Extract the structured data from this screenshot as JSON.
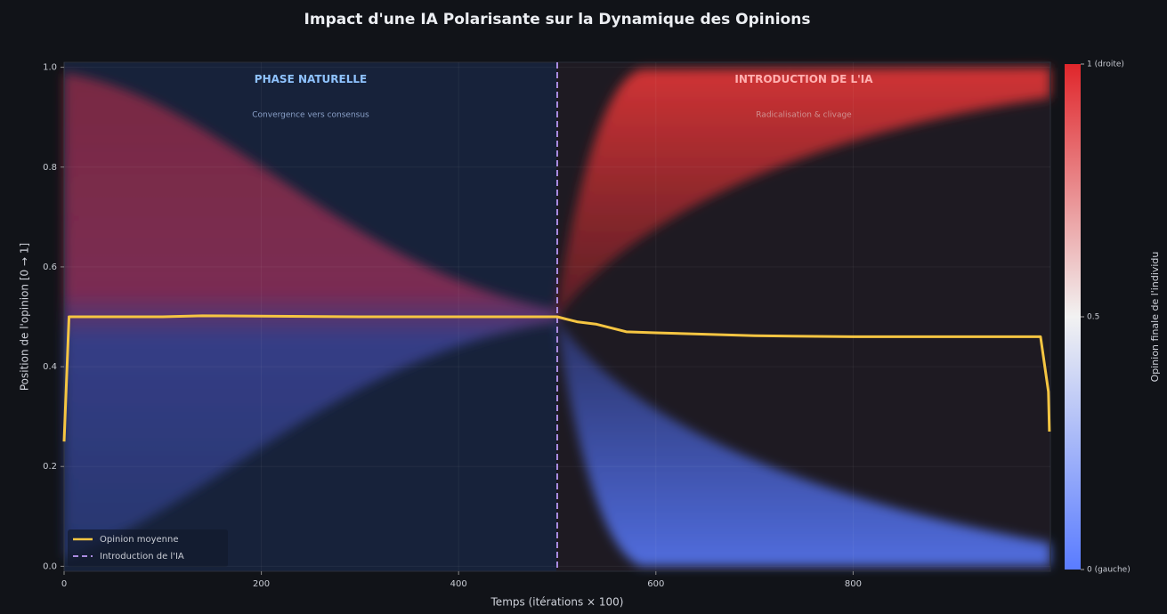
{
  "chart_data": {
    "type": "line",
    "title": "Impact d'une IA Polarisante sur la Dynamique des Opinions",
    "x_label": "Temps  (itérations × 100)",
    "y_label": "Position de l'opinion  [0 → 1]",
    "x": [
      0,
      5,
      100,
      140,
      300,
      500,
      520,
      540,
      570,
      600,
      700,
      800,
      990,
      998,
      999
    ],
    "series": [
      {
        "name": "Opinion moyenne",
        "color": "#f5c542",
        "values": [
          0.25,
          0.5,
          0.5,
          0.502,
          0.5,
          0.5,
          0.49,
          0.485,
          0.47,
          0.468,
          0.462,
          0.46,
          0.46,
          0.35,
          0.27
        ]
      }
    ],
    "vline": {
      "name": "Introduction de l'IA",
      "x": 500,
      "color": "#a98be0"
    },
    "annotations": [
      {
        "text": "PHASE NATURELLE",
        "x": 250,
        "y": 0.975
      },
      {
        "text": "Convergence vers consensus",
        "x": 250,
        "y": 0.905
      },
      {
        "text": "INTRODUCTION DE L'IA",
        "x": 750,
        "y": 0.975
      },
      {
        "text": "Radicalisation & clivage",
        "x": 750,
        "y": 0.905
      }
    ],
    "xlim": [
      0,
      1000
    ],
    "ylim": [
      -0.01,
      1.01
    ],
    "xticks": [
      0,
      200,
      400,
      600,
      800
    ],
    "yticks": [
      {
        "value": 0,
        "label": "0.0"
      },
      0.2,
      0.4,
      0.6,
      0.8,
      {
        "value": 1,
        "label": "1.0"
      }
    ],
    "legend": "lower left",
    "colorbar": {
      "label": "Opinion finale de l'individu",
      "lim": [
        0,
        1
      ],
      "ticks": [
        {
          "value": 0,
          "label": "0  (gauche)"
        },
        0.5,
        {
          "value": 1,
          "label": "1  (droite)"
        }
      ],
      "colors": [
        "#5a7cff",
        "#f2f2f2",
        "#e0262b"
      ]
    }
  }
}
